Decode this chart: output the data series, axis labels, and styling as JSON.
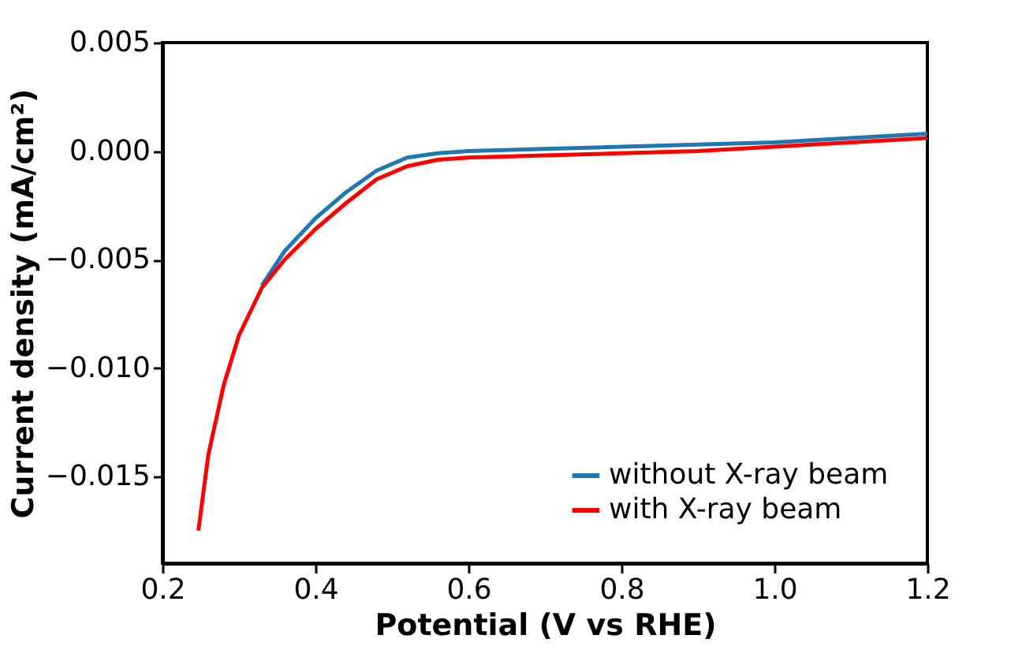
{
  "chart_data": {
    "type": "line",
    "xlabel": "Potential (V vs RHE)",
    "ylabel": "Current density (mA/cm²)",
    "xlim": [
      0.2,
      1.2
    ],
    "ylim": [
      -0.019,
      0.005
    ],
    "xticks": [
      0.2,
      0.4,
      0.6,
      0.8,
      {
        "value": 1.0,
        "label": "1.0"
      },
      1.2
    ],
    "yticks": [
      {
        "value": -0.015,
        "label": "−0.015"
      },
      {
        "value": -0.01,
        "label": "−0.010"
      },
      {
        "value": -0.005,
        "label": "−0.005"
      },
      {
        "value": 0,
        "label": "0.000"
      },
      {
        "value": 0.005,
        "label": "0.005"
      }
    ],
    "legend": "bottom right",
    "grid": false,
    "line_style": "solid",
    "marker": "none",
    "series": [
      {
        "name": "without X-ray beam",
        "color": "#1f77b4",
        "x": [
          0.33,
          0.36,
          0.4,
          0.44,
          0.48,
          0.52,
          0.56,
          0.6,
          0.7,
          0.8,
          0.9,
          1.0,
          1.1,
          1.2
        ],
        "values": [
          -0.0062,
          -0.0046,
          -0.0031,
          -0.0019,
          -0.0009,
          -0.0003,
          -0.0001,
          0.0,
          0.0001,
          0.0002,
          0.0003,
          0.0004,
          0.0006,
          0.0008
        ]
      },
      {
        "name": "with X-ray beam",
        "color": "#ff0000",
        "x": [
          0.247,
          0.26,
          0.28,
          0.3,
          0.33,
          0.36,
          0.4,
          0.44,
          0.48,
          0.52,
          0.56,
          0.6,
          0.7,
          0.8,
          0.9,
          1.0,
          1.1,
          1.2
        ],
        "values": [
          -0.0175,
          -0.014,
          -0.0108,
          -0.0085,
          -0.0063,
          -0.005,
          -0.0036,
          -0.0024,
          -0.0013,
          -0.0007,
          -0.0004,
          -0.0003,
          -0.0002,
          -0.0001,
          0.0,
          0.0002,
          0.0004,
          0.0006
        ]
      }
    ]
  }
}
